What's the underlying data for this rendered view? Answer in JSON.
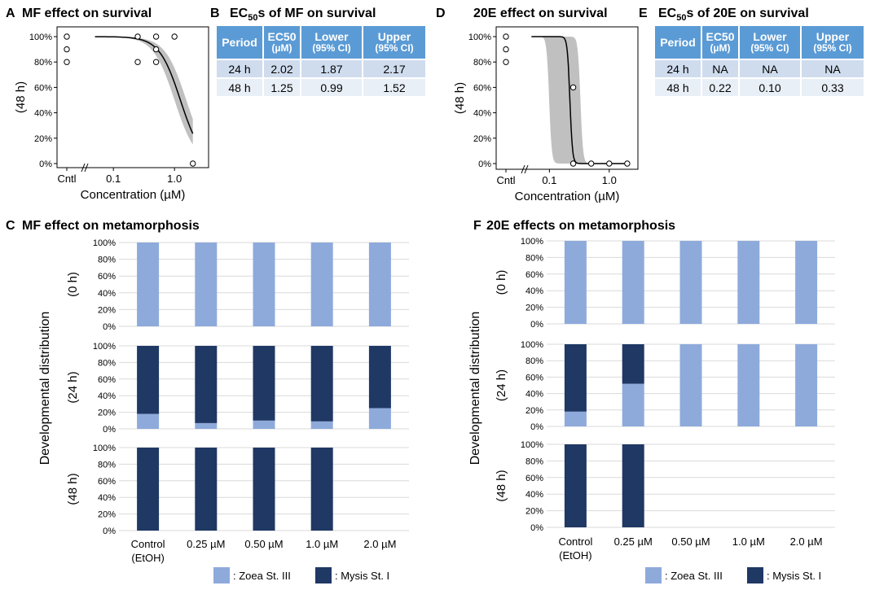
{
  "panels": {
    "A": {
      "letter": "A",
      "title": "MF effect on survival"
    },
    "B": {
      "letter": "B",
      "title_pre": "EC",
      "title_sub": "50",
      "title_post": "s of MF on survival"
    },
    "C": {
      "letter": "C",
      "title": "MF effect on metamorphosis"
    },
    "D": {
      "letter": "D",
      "title": "20E effect on survival"
    },
    "E": {
      "letter": "E",
      "title_pre": "EC",
      "title_sub": "50",
      "title_post": "s of 20E on survival"
    },
    "F": {
      "letter": "F",
      "title": "20E effects on metamorphosis"
    }
  },
  "tables": {
    "B": {
      "headers": [
        {
          "main": "Period",
          "sub": ""
        },
        {
          "main": "EC50",
          "sub": "(µM)"
        },
        {
          "main": "Lower",
          "sub": "(95% CI)"
        },
        {
          "main": "Upper",
          "sub": "(95% CI)"
        }
      ],
      "rows": [
        [
          "24 h",
          "2.02",
          "1.87",
          "2.17"
        ],
        [
          "48 h",
          "1.25",
          "0.99",
          "1.52"
        ]
      ]
    },
    "E": {
      "headers": [
        {
          "main": "Period",
          "sub": ""
        },
        {
          "main": "EC50",
          "sub": "(µM)"
        },
        {
          "main": "Lower",
          "sub": "(95% CI)"
        },
        {
          "main": "Upper",
          "sub": "(95% CI)"
        }
      ],
      "rows": [
        [
          "24 h",
          "NA",
          "NA",
          "NA"
        ],
        [
          "48 h",
          "0.22",
          "0.10",
          "0.33"
        ]
      ]
    }
  },
  "colors": {
    "zoea": "#8eaadb",
    "mysis": "#1f3864",
    "band": "#c0c0c0",
    "curve": "#000000",
    "grid": "#d9d9d9"
  },
  "legend": {
    "zoea": ": Zoea St. III",
    "mysis": ": Mysis St. I"
  },
  "chart_data": [
    {
      "id": "A",
      "type": "scatter",
      "title": "MF effect on survival",
      "xlabel": "Concentration (µM)",
      "ylabel": "(48 h)",
      "x_ticks": [
        "Cntl",
        "0.1",
        "1.0"
      ],
      "y_ticks": [
        "0%",
        "20%",
        "40%",
        "60%",
        "80%",
        "100%"
      ],
      "ylim": [
        0,
        100
      ],
      "xscale": "log",
      "xlim": [
        0.03,
        2.5
      ],
      "points": [
        {
          "x": "Cntl",
          "y": 100
        },
        {
          "x": "Cntl",
          "y": 90
        },
        {
          "x": "Cntl",
          "y": 80
        },
        {
          "x": 0.25,
          "y": 100
        },
        {
          "x": 0.25,
          "y": 80
        },
        {
          "x": 0.5,
          "y": 100
        },
        {
          "x": 0.5,
          "y": 90
        },
        {
          "x": 0.5,
          "y": 80
        },
        {
          "x": 1.0,
          "y": 100
        },
        {
          "x": 2.0,
          "y": 0
        }
      ],
      "fit": {
        "ec50": 1.25,
        "hill": 2.5,
        "top": 100,
        "x_start": 0.05,
        "x_end": 2.0,
        "band": "95% CI"
      }
    },
    {
      "id": "D",
      "type": "scatter",
      "title": "20E effect on survival",
      "xlabel": "Concentration (µM)",
      "ylabel": "(48 h)",
      "x_ticks": [
        "Cntl",
        "0.1",
        "1.0"
      ],
      "y_ticks": [
        "0%",
        "20%",
        "40%",
        "60%",
        "80%",
        "100%"
      ],
      "ylim": [
        0,
        100
      ],
      "xscale": "log",
      "xlim": [
        0.03,
        2.5
      ],
      "points": [
        {
          "x": "Cntl",
          "y": 100
        },
        {
          "x": "Cntl",
          "y": 90
        },
        {
          "x": "Cntl",
          "y": 80
        },
        {
          "x": 0.25,
          "y": 60
        },
        {
          "x": 0.25,
          "y": 0
        },
        {
          "x": 0.5,
          "y": 0
        },
        {
          "x": 1.0,
          "y": 0
        },
        {
          "x": 2.0,
          "y": 0
        }
      ],
      "fit": {
        "ec50": 0.22,
        "hill": 20,
        "top": 100,
        "x_start": 0.05,
        "x_end": 2.0,
        "band": "95% CI"
      }
    },
    {
      "id": "C",
      "type": "bar",
      "stacked": true,
      "title": "MF effect on metamorphosis",
      "ylabel": "Developmental distribution",
      "categories": [
        "Control (EtOH)",
        "0.25 µM",
        "0.50 µM",
        "1.0 µM",
        "2.0 µM"
      ],
      "y_ticks": [
        "0%",
        "20%",
        "40%",
        "60%",
        "80%",
        "100%"
      ],
      "rows": [
        {
          "label": "(0 h)",
          "series": [
            {
              "name": "Zoea St. III",
              "values": [
                100,
                100,
                100,
                100,
                100
              ]
            },
            {
              "name": "Mysis St. I",
              "values": [
                0,
                0,
                0,
                0,
                0
              ]
            }
          ]
        },
        {
          "label": "(24 h)",
          "series": [
            {
              "name": "Zoea St. III",
              "values": [
                18,
                7,
                10,
                9,
                25
              ]
            },
            {
              "name": "Mysis St. I",
              "values": [
                82,
                93,
                90,
                91,
                75
              ]
            }
          ]
        },
        {
          "label": "(48 h)",
          "series": [
            {
              "name": "Zoea St. III",
              "values": [
                0,
                0,
                0,
                0,
                0
              ]
            },
            {
              "name": "Mysis St. I",
              "values": [
                100,
                100,
                100,
                100,
                0
              ]
            }
          ]
        }
      ]
    },
    {
      "id": "F",
      "type": "bar",
      "stacked": true,
      "title": "20E effects on metamorphosis",
      "ylabel": "Developmental distribution",
      "categories": [
        "Control (EtOH)",
        "0.25 µM",
        "0.50 µM",
        "1.0 µM",
        "2.0 µM"
      ],
      "y_ticks": [
        "0%",
        "20%",
        "40%",
        "60%",
        "80%",
        "100%"
      ],
      "rows": [
        {
          "label": "(0 h)",
          "series": [
            {
              "name": "Zoea St. III",
              "values": [
                100,
                100,
                100,
                100,
                100
              ]
            },
            {
              "name": "Mysis St. I",
              "values": [
                0,
                0,
                0,
                0,
                0
              ]
            }
          ]
        },
        {
          "label": "(24 h)",
          "series": [
            {
              "name": "Zoea St. III",
              "values": [
                18,
                52,
                100,
                100,
                100
              ]
            },
            {
              "name": "Mysis St. I",
              "values": [
                82,
                48,
                0,
                0,
                0
              ]
            }
          ]
        },
        {
          "label": "(48 h)",
          "series": [
            {
              "name": "Zoea St. III",
              "values": [
                0,
                0,
                0,
                0,
                0
              ]
            },
            {
              "name": "Mysis St. I",
              "values": [
                100,
                100,
                0,
                0,
                0
              ]
            }
          ]
        }
      ]
    }
  ]
}
